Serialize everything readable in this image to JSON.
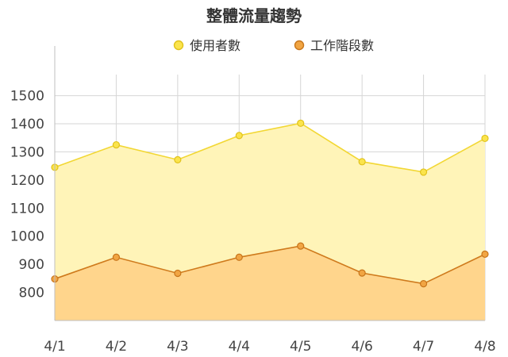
{
  "chart_data": {
    "type": "area",
    "title": "整體流量趨勢",
    "categories": [
      "4/1",
      "4/2",
      "4/3",
      "4/4",
      "4/5",
      "4/6",
      "4/7",
      "4/8"
    ],
    "yticks": [
      800,
      900,
      1000,
      1100,
      1200,
      1300,
      1400,
      1500
    ],
    "ylim": [
      700,
      1575
    ],
    "grid": true,
    "legend_position": "top",
    "series": [
      {
        "name": "使用者數",
        "values": [
          1245,
          1325,
          1272,
          1358,
          1402,
          1265,
          1228,
          1348
        ],
        "line_color": "#f2d733",
        "fill_color": "#fff4b8",
        "marker_fill": "#fbe44c",
        "marker_stroke": "#e0c21c"
      },
      {
        "name": "工作階段數",
        "values": [
          848,
          925,
          868,
          925,
          965,
          869,
          831,
          936
        ],
        "line_color": "#cf7a1c",
        "fill_color": "#ffd58c",
        "marker_fill": "#f1a543",
        "marker_stroke": "#c8761c"
      }
    ]
  }
}
